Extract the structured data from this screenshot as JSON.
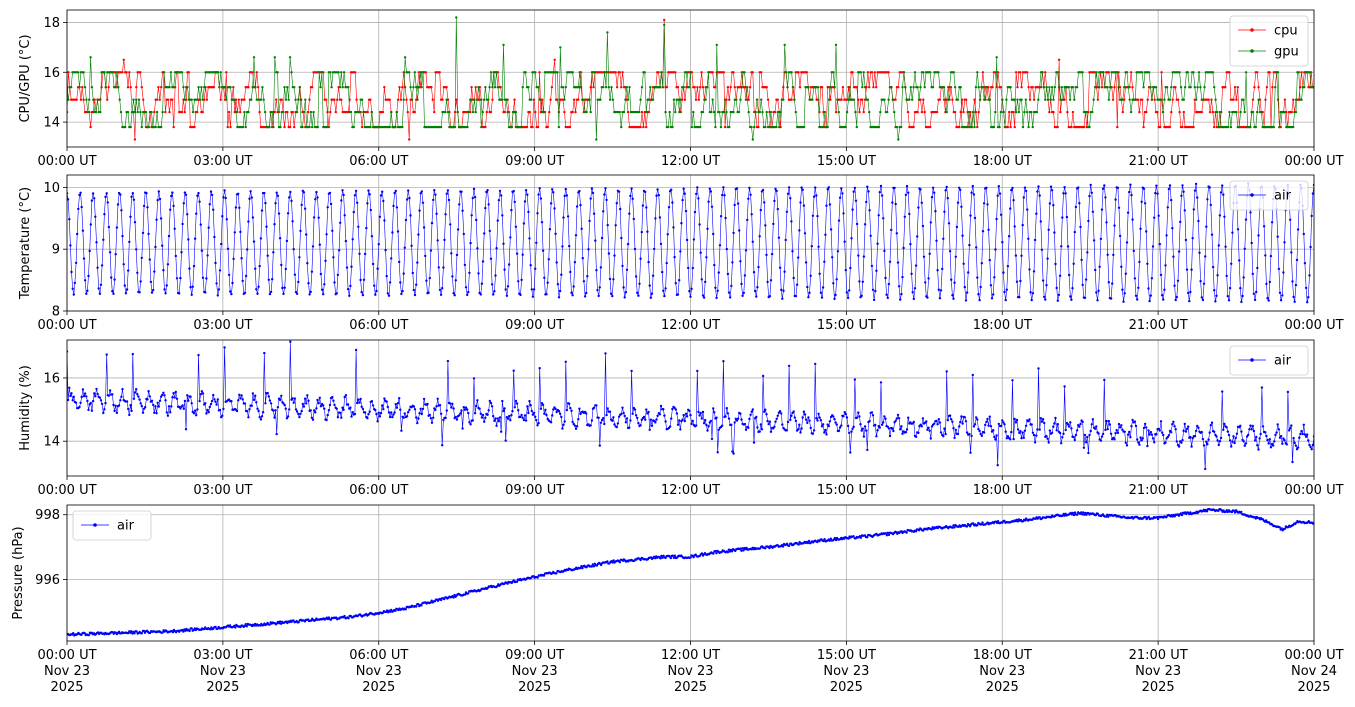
{
  "chart_data": [
    {
      "type": "line",
      "ylabel": "CPU/GPU (°C)",
      "ylim": [
        13.0,
        18.5
      ],
      "yticks": [
        14,
        16,
        18
      ],
      "grid": true,
      "legend_loc": "top-right",
      "xticks": [
        "00:00 UT",
        "03:00 UT",
        "06:00 UT",
        "09:00 UT",
        "12:00 UT",
        "15:00 UT",
        "18:00 UT",
        "21:00 UT",
        "00:00 UT"
      ],
      "series": [
        {
          "name": "cpu",
          "color": "#ff0000",
          "pattern": "cpugpu",
          "low": 13.8,
          "high": 16.0,
          "spikes": [
            [
              1.1,
              16.5
            ],
            [
              1.3,
              13.3
            ],
            [
              6.6,
              13.3
            ],
            [
              9.4,
              16.5
            ],
            [
              11.5,
              18.1
            ],
            [
              19.1,
              16.5
            ]
          ]
        },
        {
          "name": "gpu",
          "color": "#008000",
          "pattern": "cpugpu",
          "low": 13.8,
          "high": 16.0,
          "spikes": [
            [
              0.45,
              16.6
            ],
            [
              3.6,
              16.6
            ],
            [
              4.0,
              16.6
            ],
            [
              4.3,
              16.6
            ],
            [
              6.5,
              16.6
            ],
            [
              7.5,
              18.2
            ],
            [
              8.4,
              17.1
            ],
            [
              9.5,
              17.0
            ],
            [
              10.4,
              17.6
            ],
            [
              11.5,
              17.9
            ],
            [
              12.5,
              17.1
            ],
            [
              13.8,
              17.1
            ],
            [
              14.8,
              17.1
            ],
            [
              17.9,
              16.6
            ],
            [
              10.2,
              13.3
            ],
            [
              13.2,
              13.3
            ],
            [
              16.0,
              13.3
            ]
          ]
        }
      ]
    },
    {
      "type": "line",
      "ylabel": "Temperature (°C)",
      "ylim": [
        8.0,
        10.2
      ],
      "yticks": [
        8,
        9,
        10
      ],
      "grid": true,
      "legend_loc": "top-right",
      "xticks": [
        "00:00 UT",
        "03:00 UT",
        "06:00 UT",
        "09:00 UT",
        "12:00 UT",
        "15:00 UT",
        "18:00 UT",
        "21:00 UT",
        "00:00 UT"
      ],
      "series": [
        {
          "name": "air",
          "color": "#0000ff",
          "pattern": "sine",
          "center": 9.1,
          "amp_start": 0.82,
          "amp_end": 0.95,
          "cycles": 95
        }
      ]
    },
    {
      "type": "line",
      "ylabel": "Humidity (%)",
      "ylim": [
        12.9,
        17.2
      ],
      "yticks": [
        14,
        16
      ],
      "grid": true,
      "legend_loc": "top-right",
      "xticks": [
        "00:00 UT",
        "03:00 UT",
        "06:00 UT",
        "09:00 UT",
        "12:00 UT",
        "15:00 UT",
        "18:00 UT",
        "21:00 UT",
        "00:00 UT"
      ],
      "series": [
        {
          "name": "air",
          "color": "#0000ff",
          "pattern": "humidity",
          "start": 15.3,
          "end": 14.1,
          "spike_height": 1.9
        }
      ]
    },
    {
      "type": "line",
      "ylabel": "Pressure (hPa)",
      "ylim": [
        994.1,
        998.3
      ],
      "yticks": [
        996,
        998
      ],
      "grid": true,
      "legend_loc": "top-left",
      "xticks": [
        "00:00 UT\nNov 23\n2025",
        "03:00 UT\nNov 23\n2025",
        "06:00 UT\nNov 23\n2025",
        "09:00 UT\nNov 23\n2025",
        "12:00 UT\nNov 23\n2025",
        "15:00 UT\nNov 23\n2025",
        "18:00 UT\nNov 23\n2025",
        "21:00 UT\nNov 23\n2025",
        "00:00 UT\nNov 24\n2025"
      ],
      "series": [
        {
          "name": "air",
          "color": "#0000ff",
          "pattern": "trend",
          "points": [
            [
              0,
              994.3
            ],
            [
              2,
              994.4
            ],
            [
              4,
              994.65
            ],
            [
              5.5,
              994.85
            ],
            [
              6.5,
              995.1
            ],
            [
              7.5,
              995.5
            ],
            [
              8.5,
              995.9
            ],
            [
              9.5,
              996.25
            ],
            [
              10.5,
              996.55
            ],
            [
              11.5,
              996.7
            ],
            [
              12,
              996.7
            ],
            [
              12.5,
              996.85
            ],
            [
              13.5,
              997.0
            ],
            [
              14.5,
              997.2
            ],
            [
              15.5,
              997.35
            ],
            [
              16.5,
              997.55
            ],
            [
              17.5,
              997.7
            ],
            [
              18.5,
              997.85
            ],
            [
              19.5,
              998.05
            ],
            [
              20.5,
              997.9
            ],
            [
              21,
              997.9
            ],
            [
              22,
              998.15
            ],
            [
              22.5,
              998.1
            ],
            [
              23,
              997.85
            ],
            [
              23.4,
              997.55
            ],
            [
              23.7,
              997.8
            ],
            [
              24,
              997.75
            ]
          ]
        }
      ]
    }
  ]
}
